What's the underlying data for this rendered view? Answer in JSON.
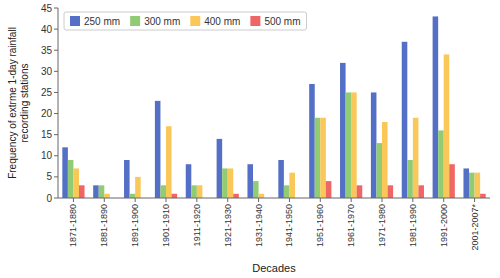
{
  "chart_data": {
    "type": "bar",
    "xlabel": "Decades",
    "ylabel": "Frequency of extrme 1-day rainfall\nrecording stations",
    "categories": [
      "1871-1880",
      "1881-1890",
      "1891-1900",
      "1901-1910",
      "1911-1920",
      "1921-1930",
      "1931-1940",
      "1941-1950",
      "1951-1960",
      "1961-1970",
      "1971-1980",
      "1981-1990",
      "1991-2000",
      "2001-2007*"
    ],
    "series": [
      {
        "name": "250 mm",
        "values": [
          12,
          3,
          9,
          23,
          8,
          14,
          8,
          9,
          27,
          32,
          25,
          37,
          43,
          7
        ]
      },
      {
        "name": "300 mm",
        "values": [
          9,
          3,
          1,
          3,
          3,
          7,
          4,
          3,
          19,
          25,
          13,
          9,
          16,
          6
        ]
      },
      {
        "name": "400 mm",
        "values": [
          7,
          1,
          5,
          17,
          3,
          7,
          1,
          6,
          19,
          25,
          18,
          19,
          34,
          6
        ]
      },
      {
        "name": "500 mm",
        "values": [
          3,
          0,
          0,
          1,
          0,
          1,
          0,
          0,
          4,
          3,
          3,
          3,
          8,
          1
        ]
      }
    ],
    "ylim": [
      0,
      45
    ],
    "yticks": [
      0,
      5,
      10,
      15,
      20,
      25,
      30,
      35,
      40,
      45
    ],
    "grid": false,
    "legend": "upper left"
  }
}
